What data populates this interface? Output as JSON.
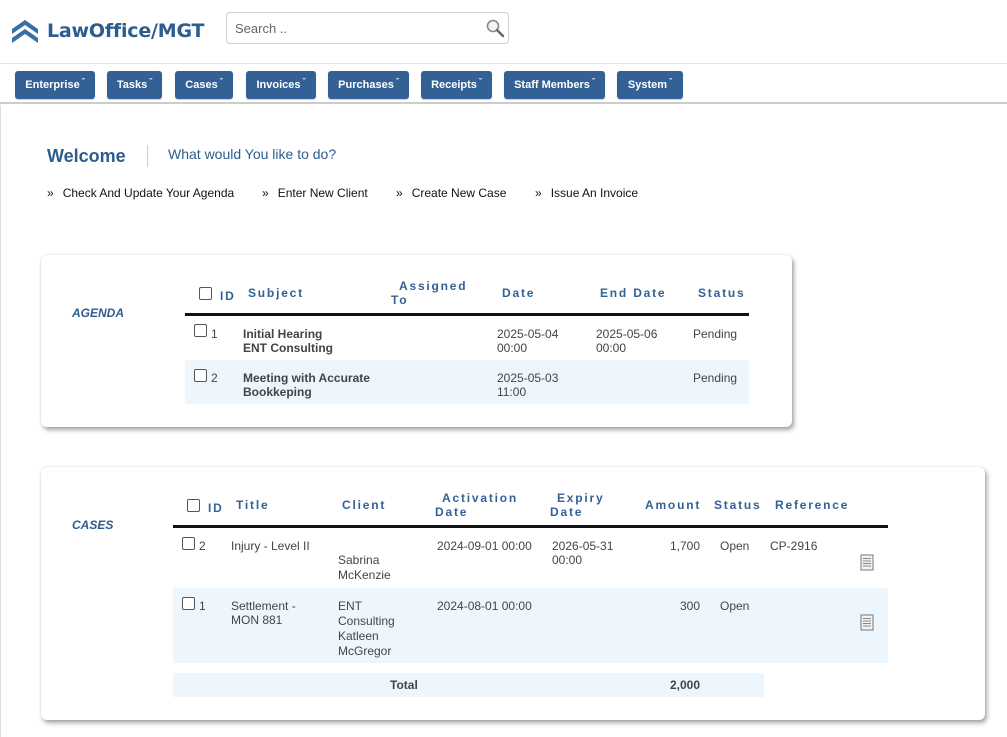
{
  "app": {
    "title": "LawOffice/MGT"
  },
  "search": {
    "placeholder": "Search .."
  },
  "nav": [
    {
      "label": "Enterprise"
    },
    {
      "label": "Tasks"
    },
    {
      "label": "Cases"
    },
    {
      "label": "Invoices"
    },
    {
      "label": "Purchases"
    },
    {
      "label": "Receipts"
    },
    {
      "label": "Staff Members"
    },
    {
      "label": "System"
    }
  ],
  "welcome": {
    "title": "Welcome",
    "question": "What would You like to do?",
    "links": [
      "Check And Update Your Agenda",
      "Enter New Client",
      "Create New Case",
      "Issue An Invoice"
    ]
  },
  "agenda": {
    "label": "AGENDA",
    "headers": {
      "id": "ID",
      "subject": "Subject",
      "assigned1": "Assigned",
      "assigned2": "To",
      "date": "Date",
      "end_date": "End Date",
      "status": "Status"
    },
    "rows": [
      {
        "id": "1",
        "subject1": "Initial Hearing",
        "subject2": "ENT Consulting",
        "date1": "2025-05-04",
        "date2": "00:00",
        "end1": "2025-05-06",
        "end2": "00:00",
        "status": "Pending"
      },
      {
        "id": "2",
        "subject1": "Meeting with Accurate",
        "subject2": "Bookkeping",
        "date1": "2025-05-03",
        "date2": "11:00",
        "end1": "",
        "end2": "",
        "status": "Pending"
      }
    ]
  },
  "cases": {
    "label": "CASES",
    "headers": {
      "id": "ID",
      "title": "Title",
      "client": "Client",
      "activation1": "Activation",
      "activation2": "Date",
      "expiry1": "Expiry",
      "expiry2": "Date",
      "amount": "Amount",
      "status": "Status",
      "reference": "Reference"
    },
    "rows": [
      {
        "id": "2",
        "title1": "Injury - Level II",
        "title2": "",
        "client1": "",
        "client2": "Sabrina",
        "client3": "McKenzie",
        "client4": "",
        "activation": "2024-09-01 00:00",
        "expiry1": "2026-05-31",
        "expiry2": "00:00",
        "amount": "1,700",
        "status": "Open",
        "reference": "CP-2916"
      },
      {
        "id": "1",
        "title1": "Settlement -",
        "title2": "MON 881",
        "client1": "ENT",
        "client2": "Consulting",
        "client3": "Katleen",
        "client4": "McGregor",
        "activation": "2024-08-01 00:00",
        "expiry1": "",
        "expiry2": "",
        "amount": "300",
        "status": "Open",
        "reference": ""
      }
    ],
    "total_label": "Total",
    "total_value": "2,000"
  },
  "colors": {
    "brand": "#336196",
    "text_brand": "#2d5c8e",
    "row_alt": "#eef6fd"
  },
  "icons": {
    "logo": "chevron-stack-logo",
    "search": "magnifier-icon",
    "document": "document-icon"
  }
}
